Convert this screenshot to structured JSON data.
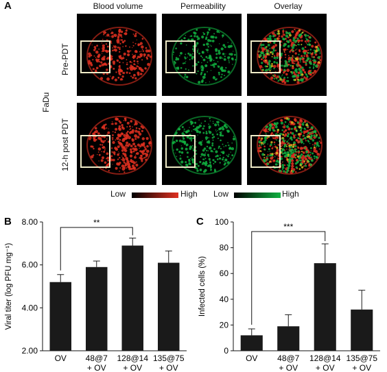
{
  "panelA": {
    "letter": "A",
    "columns": [
      "Blood volume",
      "Permeability",
      "Overlay"
    ],
    "rows": [
      "Pre-PDT",
      "12-h post PDT"
    ],
    "group": "FaDu",
    "legend": {
      "red_low": "Low",
      "red_high": "High",
      "green_low": "Low",
      "green_high": "High",
      "red_color": "#e03020",
      "green_color": "#10b040"
    }
  },
  "chart_data": [
    {
      "letter": "B",
      "type": "bar",
      "ylabel": "Viral titer (log PFU mg⁻¹)",
      "ylim": [
        2.0,
        8.0
      ],
      "yticks": [
        "2.00",
        "4.00",
        "6.00",
        "8.00"
      ],
      "categories": [
        [
          "OV"
        ],
        [
          "48@7",
          "+ OV"
        ],
        [
          "128@14",
          "+ OV"
        ],
        [
          "135@75",
          "+ OV"
        ]
      ],
      "values": [
        5.2,
        5.9,
        6.9,
        6.1
      ],
      "errors": [
        0.35,
        0.28,
        0.35,
        0.55
      ],
      "significance": "**",
      "bracket": [
        0,
        2
      ]
    },
    {
      "letter": "C",
      "type": "bar",
      "ylabel": "Infected cells (%)",
      "ylim": [
        0,
        100
      ],
      "yticks": [
        "0",
        "20",
        "40",
        "60",
        "80",
        "100"
      ],
      "categories": [
        [
          "OV"
        ],
        [
          "48@7",
          "+ OV"
        ],
        [
          "128@14",
          "+ OV"
        ],
        [
          "135@75",
          "+ OV"
        ]
      ],
      "values": [
        12,
        19,
        68,
        32
      ],
      "errors": [
        5,
        9,
        15,
        15
      ],
      "significance": "***",
      "bracket": [
        0,
        2
      ]
    }
  ]
}
